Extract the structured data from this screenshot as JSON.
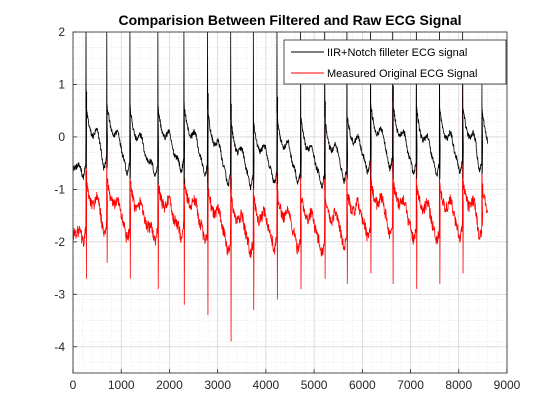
{
  "chart_data": {
    "type": "line",
    "title": "Comparision Between Filtered and Raw ECG Signal",
    "xlabel": "",
    "ylabel": "",
    "xlim": [
      0,
      9000
    ],
    "ylim": [
      -4.5,
      2
    ],
    "xticks": [
      0,
      1000,
      2000,
      3000,
      4000,
      5000,
      6000,
      7000,
      8000,
      9000
    ],
    "yticks": [
      2,
      1,
      0,
      -1,
      -2,
      -3,
      -4
    ],
    "grid": "on (major and minor, dotted)",
    "legend_position": "top-right",
    "series": [
      {
        "name": "IIR+Notch filleter ECG signal",
        "color": "#000000",
        "baseline": -0.6,
        "noise": 0.06,
        "spikes": [
          {
            "x": 270,
            "peak": 2.0,
            "trough": -0.6
          },
          {
            "x": 700,
            "peak": 2.0,
            "trough": -0.6
          },
          {
            "x": 1180,
            "peak": 2.0,
            "trough": -0.8
          },
          {
            "x": 1760,
            "peak": 2.0,
            "trough": -0.9
          },
          {
            "x": 2300,
            "peak": 2.0,
            "trough": -0.9
          },
          {
            "x": 2790,
            "peak": 2.0,
            "trough": -1.0
          },
          {
            "x": 3270,
            "peak": 2.0,
            "trough": -1.0
          },
          {
            "x": 3740,
            "peak": 2.0,
            "trough": -1.0
          },
          {
            "x": 4230,
            "peak": 2.0,
            "trough": -0.9
          },
          {
            "x": 4720,
            "peak": 2.0,
            "trough": -0.8
          },
          {
            "x": 5220,
            "peak": 2.0,
            "trough": -0.8
          },
          {
            "x": 5680,
            "peak": 2.0,
            "trough": -0.8
          },
          {
            "x": 6170,
            "peak": 2.0,
            "trough": -0.8
          },
          {
            "x": 6630,
            "peak": 2.0,
            "trough": -0.8
          },
          {
            "x": 7120,
            "peak": 2.0,
            "trough": -0.8
          },
          {
            "x": 7600,
            "peak": 2.0,
            "trough": -0.8
          },
          {
            "x": 8080,
            "peak": 2.0,
            "trough": -0.8
          },
          {
            "x": 8480,
            "peak": 1.0,
            "trough": -0.7
          }
        ]
      },
      {
        "name": "Measured Original ECG Signal",
        "color": "#ff0000",
        "baseline": -1.85,
        "noise": 0.12,
        "spikes": [
          {
            "x": 270,
            "peak": 1.9,
            "trough": -2.7
          },
          {
            "x": 700,
            "peak": 0.1,
            "trough": -2.4
          },
          {
            "x": 1180,
            "peak": 0.0,
            "trough": -2.7
          },
          {
            "x": 1760,
            "peak": 0.0,
            "trough": -2.9
          },
          {
            "x": 2300,
            "peak": 0.3,
            "trough": -3.2
          },
          {
            "x": 2790,
            "peak": 0.2,
            "trough": -3.4
          },
          {
            "x": 3270,
            "peak": -0.1,
            "trough": -3.9
          },
          {
            "x": 3740,
            "peak": -0.1,
            "trough": -3.3
          },
          {
            "x": 4230,
            "peak": -0.2,
            "trough": -3.1
          },
          {
            "x": 4720,
            "peak": 0.1,
            "trough": -2.9
          },
          {
            "x": 5220,
            "peak": 0.2,
            "trough": -2.7
          },
          {
            "x": 5680,
            "peak": 0.9,
            "trough": -2.8
          },
          {
            "x": 6170,
            "peak": 0.9,
            "trough": -2.6
          },
          {
            "x": 6630,
            "peak": 0.9,
            "trough": -2.8
          },
          {
            "x": 7120,
            "peak": 0.9,
            "trough": -2.9
          },
          {
            "x": 7600,
            "peak": 1.3,
            "trough": -2.8
          },
          {
            "x": 8080,
            "peak": 1.4,
            "trough": -2.6
          },
          {
            "x": 8480,
            "peak": 0.0,
            "trough": -1.7
          }
        ]
      }
    ]
  }
}
